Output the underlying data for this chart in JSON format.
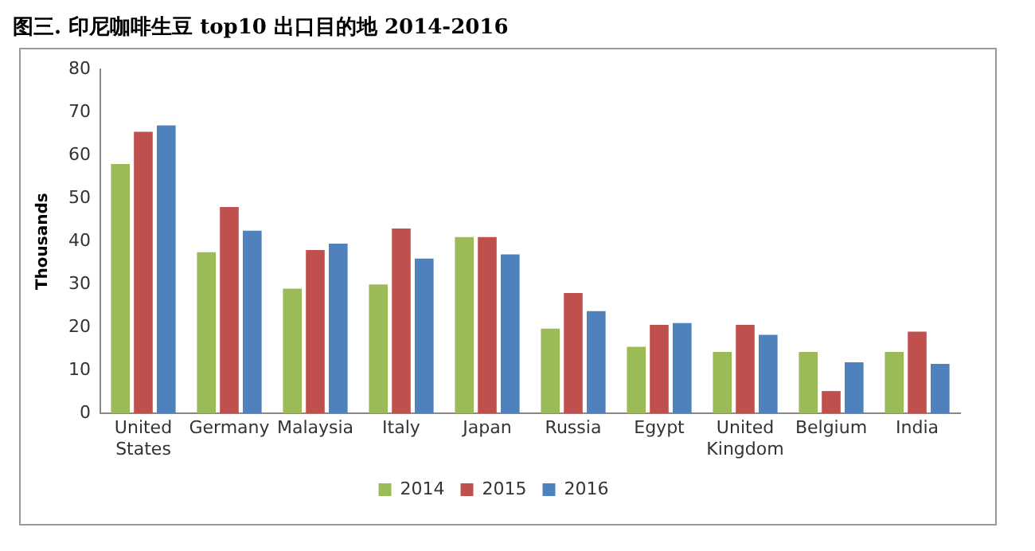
{
  "chart_data": {
    "type": "bar",
    "title": "图三. 印尼咖啡生豆 top10 出口目的地  2014-2016",
    "ylabel": "Thousands",
    "categories": [
      "United States",
      "Germany",
      "Malaysia",
      "Italy",
      "Japan",
      "Russia",
      "Egypt",
      "United Kingdom",
      "Belgium",
      "India"
    ],
    "series": [
      {
        "name": "2014",
        "color": "#9bbb59",
        "values": [
          58,
          37.5,
          29,
          30,
          41,
          19.7,
          15.5,
          14.3,
          14.3,
          14.3
        ]
      },
      {
        "name": "2015",
        "color": "#c0504d",
        "values": [
          65.5,
          48,
          38,
          43,
          41,
          28,
          20.6,
          20.6,
          5.2,
          19
        ]
      },
      {
        "name": "2016",
        "color": "#4f81bd",
        "values": [
          67,
          42.5,
          39.5,
          36,
          37,
          23.8,
          21,
          18.3,
          11.9,
          11.5
        ]
      }
    ],
    "ylim": [
      0,
      80
    ],
    "yticks": [
      0,
      10,
      20,
      30,
      40,
      50,
      60,
      70,
      80
    ],
    "grid": false,
    "legend": "bottom"
  }
}
